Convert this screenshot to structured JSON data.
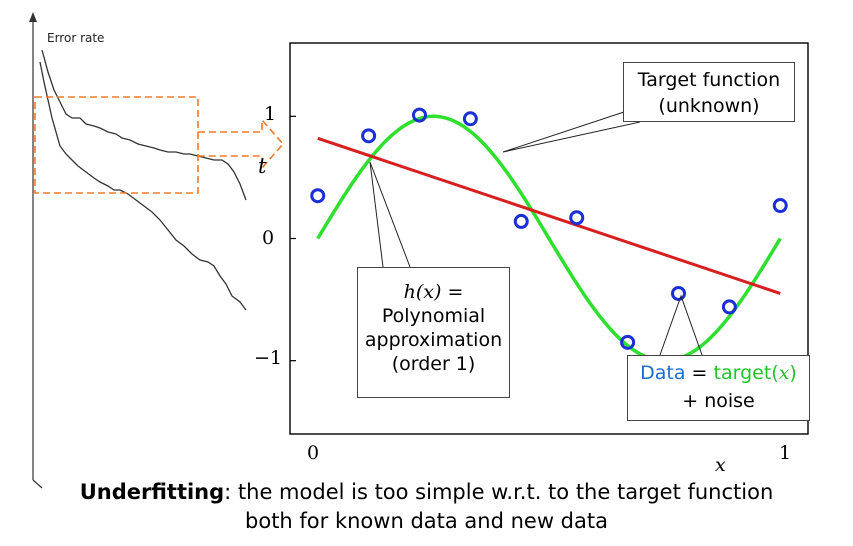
{
  "side_plot": {
    "ylabel": "Error rate"
  },
  "chart_data": {
    "type": "scatter",
    "xlabel": "x",
    "ylabel": "t",
    "xlim": [
      -0.06,
      1.06
    ],
    "ylim": [
      -1.6,
      1.6
    ],
    "x_ticks": [
      "0",
      "1"
    ],
    "y_ticks": [
      "1",
      "0",
      "−1"
    ],
    "y_tick_values": [
      1,
      0,
      -1
    ],
    "x_tick_values": [
      0,
      1
    ],
    "series": [
      {
        "kind": "points",
        "color": "#1a2fd6",
        "x": [
          0.0,
          0.11,
          0.22,
          0.33,
          0.44,
          0.56,
          0.67,
          0.78,
          0.89,
          1.0
        ],
        "y": [
          0.35,
          0.84,
          1.01,
          0.98,
          0.14,
          0.17,
          -0.85,
          -0.45,
          -0.56,
          0.27
        ]
      },
      {
        "kind": "line",
        "color": "#2ee02e",
        "function": "sin(2*pi*x)"
      },
      {
        "kind": "line",
        "color": "#d62020",
        "x": [
          0,
          1
        ],
        "y": [
          0.82,
          -0.45
        ]
      }
    ]
  },
  "annotations": {
    "hx_label": "h(x)",
    "hx_eq": " =",
    "hx_line2": "Polynomial",
    "hx_line3": "approximation",
    "hx_line4": "(order 1)",
    "target_line1": "Target function",
    "target_line2": "(unknown)",
    "data_word": "Data",
    "data_eq": " = ",
    "target_word": "target(",
    "target_x": "x",
    "target_close": ")",
    "noise": "+ noise"
  },
  "caption": {
    "bold": "Underfitting",
    "rest1": ": the model is too simple w.r.t. to the target function",
    "line2": "both for known data and new data"
  },
  "colors": {
    "orange_dash": "#f07a2c",
    "curve_gray": "#333333"
  }
}
